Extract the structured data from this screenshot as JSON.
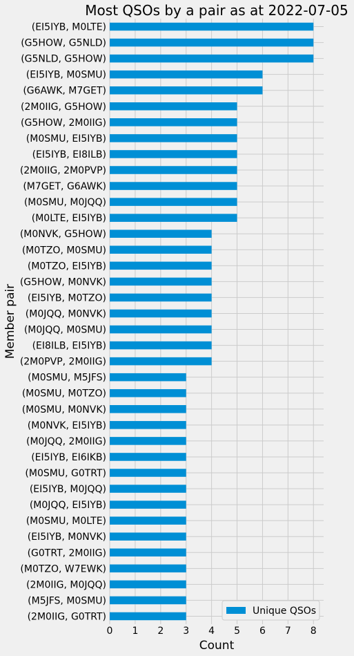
{
  "chart_data": {
    "type": "bar",
    "orientation": "horizontal",
    "title": "Most QSOs by a pair as at 2022-07-05",
    "xlabel": "Count",
    "ylabel": "Member pair",
    "xlim": [
      0,
      8.4
    ],
    "xticks": [
      "0",
      "1",
      "2",
      "3",
      "4",
      "5",
      "6",
      "7",
      "8"
    ],
    "grid": true,
    "legend_position": "bottom-right",
    "series": [
      {
        "name": "Unique QSOs",
        "color": "#008fd5"
      }
    ],
    "categories": [
      "(EI5IYB, M0LTE)",
      "(G5HOW, G5NLD)",
      "(G5NLD, G5HOW)",
      "(EI5IYB, M0SMU)",
      "(G6AWK, M7GET)",
      "(2M0IIG, G5HOW)",
      "(G5HOW, 2M0IIG)",
      "(M0SMU, EI5IYB)",
      "(EI5IYB, EI8ILB)",
      "(2M0IIG, 2M0PVP)",
      "(M7GET, G6AWK)",
      "(M0SMU, M0JQQ)",
      "(M0LTE, EI5IYB)",
      "(M0NVK, G5HOW)",
      "(M0TZO, M0SMU)",
      "(M0TZO, EI5IYB)",
      "(G5HOW, M0NVK)",
      "(EI5IYB, M0TZO)",
      "(M0JQQ, M0NVK)",
      "(M0JQQ, M0SMU)",
      "(EI8ILB, EI5IYB)",
      "(2M0PVP, 2M0IIG)",
      "(M0SMU, M5JFS)",
      "(M0SMU, M0TZO)",
      "(M0SMU, M0NVK)",
      "(M0NVK, EI5IYB)",
      "(M0JQQ, 2M0IIG)",
      "(EI5IYB, EI6IKB)",
      "(M0SMU, G0TRT)",
      "(EI5IYB, M0JQQ)",
      "(M0JQQ, EI5IYB)",
      "(M0SMU, M0LTE)",
      "(EI5IYB, M0NVK)",
      "(G0TRT, 2M0IIG)",
      "(M0TZO, W7EWK)",
      "(2M0IIG, M0JQQ)",
      "(M5JFS, M0SMU)",
      "(2M0IIG, G0TRT)"
    ],
    "values": [
      8,
      8,
      8,
      6,
      6,
      5,
      5,
      5,
      5,
      5,
      5,
      5,
      5,
      4,
      4,
      4,
      4,
      4,
      4,
      4,
      4,
      4,
      3,
      3,
      3,
      3,
      3,
      3,
      3,
      3,
      3,
      3,
      3,
      3,
      3,
      3,
      3,
      3
    ]
  }
}
